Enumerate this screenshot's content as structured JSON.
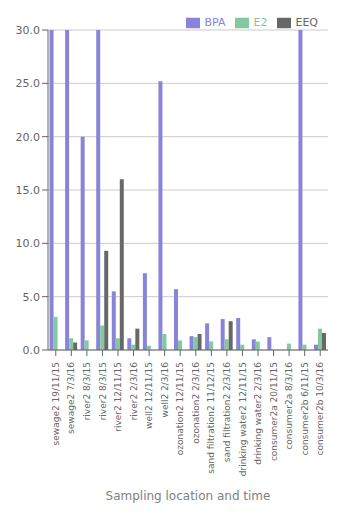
{
  "chart_data": {
    "type": "bar",
    "categories": [
      "sewage2 19/11/15",
      "sewage2 7/3/16",
      "river2 8/3/15",
      "river2 8/3/15",
      "river2 12/11/15",
      "river2 2/3/16",
      "well2 12/11/15",
      "well2 2/3/16",
      "ozonation2 12/11/15",
      "ozonation2 2/3/16",
      "sand filtration2 11/12/15",
      "sand filtration2 2/3/16",
      "drinking water2 12/11/15",
      "drinking water2 2/3/16",
      "consumer2a 20/11/15",
      "consumer2a 8/3/16",
      "consumer2b 6/11/15",
      "consumer2b 10/3/16"
    ],
    "series": [
      {
        "name": "BPA",
        "color": "#8884d8",
        "values": [
          30.0,
          30.0,
          20.0,
          30.0,
          5.5,
          1.1,
          7.2,
          25.2,
          5.7,
          1.3,
          2.5,
          2.9,
          3.0,
          1.0,
          1.2,
          0.0,
          30.0,
          0.5
        ]
      },
      {
        "name": "E2",
        "color": "#82ca9d",
        "values": [
          3.1,
          1.1,
          0.9,
          2.3,
          1.1,
          0.5,
          0.4,
          1.5,
          0.9,
          1.2,
          0.8,
          1.0,
          0.5,
          0.8,
          0.0,
          0.6,
          0.5,
          2.0
        ]
      },
      {
        "name": "EEQ",
        "color": "#686868",
        "values": [
          0.0,
          0.7,
          0.0,
          9.3,
          16.0,
          2.0,
          0.0,
          0.0,
          0.0,
          1.5,
          0.0,
          2.7,
          0.0,
          0.0,
          0.0,
          0.0,
          0.0,
          1.6
        ]
      }
    ],
    "xlabel": "Sampling location and time",
    "ylim": [
      0.0,
      30.0
    ],
    "yticks": [
      {
        "value": 0,
        "label": "0.0"
      },
      {
        "value": 5,
        "label": "5.0"
      },
      {
        "value": 10,
        "label": "10.0"
      },
      {
        "value": 15,
        "label": "15.0"
      },
      {
        "value": 20,
        "label": "20.0"
      },
      {
        "value": 25,
        "label": "25.0"
      },
      {
        "value": 30,
        "label": "30.0"
      }
    ],
    "grid": true,
    "legend": "upper right"
  }
}
